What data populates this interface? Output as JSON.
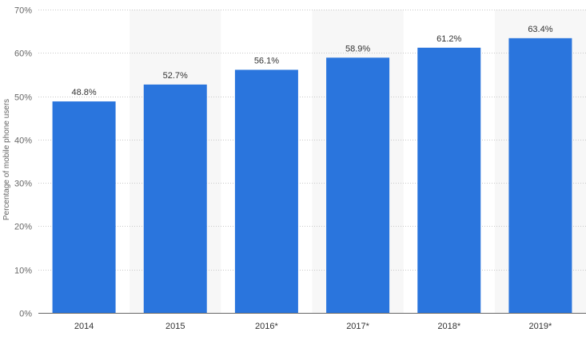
{
  "chart_data": {
    "type": "bar",
    "categories": [
      "2014",
      "2015",
      "2016*",
      "2017*",
      "2018*",
      "2019*"
    ],
    "values": [
      48.8,
      52.7,
      56.1,
      58.9,
      61.2,
      63.4
    ],
    "data_labels": [
      "48.8%",
      "52.7%",
      "56.1%",
      "58.9%",
      "61.2%",
      "63.4%"
    ],
    "ylabel": "Percentage of mobile phone users",
    "ylim": [
      0,
      70
    ],
    "yticks": [
      0,
      10,
      20,
      30,
      40,
      50,
      60,
      70
    ],
    "ytick_labels": [
      "0%",
      "10%",
      "20%",
      "30%",
      "40%",
      "50%",
      "60%",
      "70%"
    ],
    "grid": true,
    "alternating_column_shading": true,
    "colors": {
      "bar": "#2a75dd",
      "gridline": "#c8c8c8",
      "shade": "#f7f7f7",
      "axis": "#666666"
    }
  }
}
